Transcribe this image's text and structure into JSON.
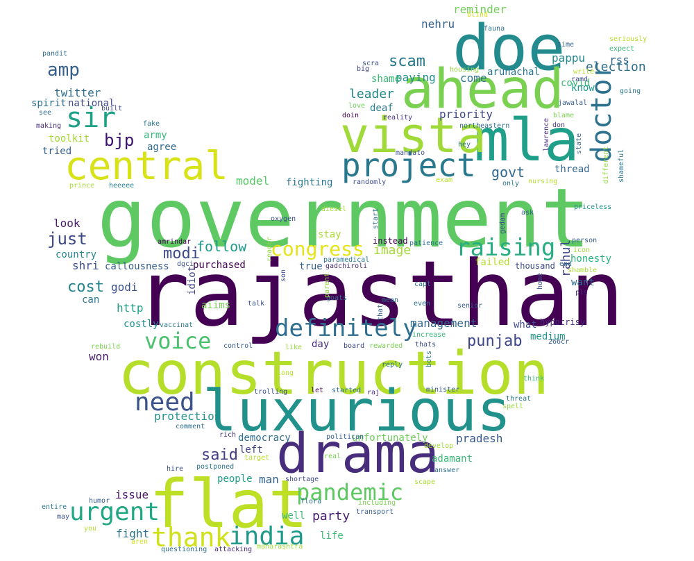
{
  "words": [
    {
      "text": "government",
      "color": "#5ec962"
    },
    {
      "text": "rajasthan",
      "color": "#440154"
    },
    {
      "text": "construction",
      "color": "#b5de2b"
    },
    {
      "text": "luxurious",
      "color": "#21918c"
    },
    {
      "text": "drama",
      "color": "#472d7b"
    },
    {
      "text": "flat",
      "color": "#bddf26"
    },
    {
      "text": "doe",
      "color": "#238a8d"
    },
    {
      "text": "ahead",
      "color": "#7ad151"
    },
    {
      "text": "mla",
      "color": "#1f9e89"
    },
    {
      "text": "vista",
      "color": "#a0da39"
    },
    {
      "text": "central",
      "color": "#d8e219"
    },
    {
      "text": "project",
      "color": "#2a788e"
    },
    {
      "text": "sir",
      "color": "#1fa187"
    },
    {
      "text": "doctor",
      "color": "#2c728e"
    },
    {
      "text": "definitely",
      "color": "#2e6e8e"
    },
    {
      "text": "congress",
      "color": "#e5e419"
    },
    {
      "text": "raising",
      "color": "#27ad81"
    },
    {
      "text": "voice",
      "color": "#4ac16d"
    },
    {
      "text": "need",
      "color": "#3b528b"
    },
    {
      "text": "urgent",
      "color": "#22a884"
    },
    {
      "text": "thank",
      "color": "#d0e11c"
    },
    {
      "text": "india",
      "color": "#1f9a8a"
    },
    {
      "text": "pandemic",
      "color": "#5ec962"
    },
    {
      "text": "said",
      "color": "#433e85"
    },
    {
      "text": "amp",
      "color": "#355f8d"
    },
    {
      "text": "bjp",
      "color": "#3b0f70"
    },
    {
      "text": "modi",
      "color": "#3e4a89"
    },
    {
      "text": "just",
      "color": "#3e4989"
    },
    {
      "text": "cost",
      "color": "#25848e"
    },
    {
      "text": "shri",
      "color": "#3d4e8a"
    },
    {
      "text": "follow",
      "color": "#1e9b8a"
    },
    {
      "text": "image",
      "color": "#a5db36"
    },
    {
      "text": "punjab",
      "color": "#3f4788"
    },
    {
      "text": "management",
      "color": "#31688e"
    },
    {
      "text": "scam",
      "color": "#29798e"
    },
    {
      "text": "leader",
      "color": "#238a8d"
    },
    {
      "text": "govt",
      "color": "#31688e"
    },
    {
      "text": "priority",
      "color": "#3f4788"
    },
    {
      "text": "paying",
      "color": "#228c8d"
    },
    {
      "text": "come",
      "color": "#2c728e"
    },
    {
      "text": "reminder",
      "color": "#70cf57"
    },
    {
      "text": "nehru",
      "color": "#355f8d"
    },
    {
      "text": "arunachal",
      "color": "#2a768e"
    },
    {
      "text": "election",
      "color": "#2e6f8e"
    },
    {
      "text": "rss",
      "color": "#31688e"
    },
    {
      "text": "pappu",
      "color": "#23898e"
    },
    {
      "text": "covid",
      "color": "#3aba76"
    },
    {
      "text": "know",
      "color": "#1f978b"
    },
    {
      "text": "thread",
      "color": "#32658e"
    },
    {
      "text": "rahul",
      "color": "#3f4889"
    },
    {
      "text": "honesty",
      "color": "#2db27d"
    },
    {
      "text": "want",
      "color": "#2e6e8e"
    },
    {
      "text": "party",
      "color": "#481a6c"
    },
    {
      "text": "people",
      "color": "#1f9e89"
    },
    {
      "text": "man",
      "color": "#33638d"
    },
    {
      "text": "well",
      "color": "#3bbb75"
    },
    {
      "text": "issue",
      "color": "#481769"
    },
    {
      "text": "fight",
      "color": "#2c738e"
    },
    {
      "text": "life",
      "color": "#3dbc74"
    },
    {
      "text": "pradesh",
      "color": "#38598c"
    },
    {
      "text": "adamant",
      "color": "#3aba76"
    },
    {
      "text": "democracy",
      "color": "#2f6c8e"
    },
    {
      "text": "unfortunately",
      "color": "#6ccd5a"
    },
    {
      "text": "left",
      "color": "#404688"
    },
    {
      "text": "won",
      "color": "#481f70"
    },
    {
      "text": "medium",
      "color": "#1f988b"
    },
    {
      "text": "day",
      "color": "#472c7a"
    },
    {
      "text": "true",
      "color": "#33638d"
    },
    {
      "text": "purchased",
      "color": "#440154"
    },
    {
      "text": "callousness",
      "color": "#355e8d"
    },
    {
      "text": "godi",
      "color": "#3b528b"
    },
    {
      "text": "can",
      "color": "#2a768e"
    },
    {
      "text": "http",
      "color": "#1fa088"
    },
    {
      "text": "costly",
      "color": "#21918c"
    },
    {
      "text": "aiims",
      "color": "#75d054"
    },
    {
      "text": "country",
      "color": "#25858e"
    },
    {
      "text": "look",
      "color": "#481a6c"
    },
    {
      "text": "fighting",
      "color": "#2a788e"
    },
    {
      "text": "model",
      "color": "#58c765"
    },
    {
      "text": "stay",
      "color": "#a8db34"
    },
    {
      "text": "failed",
      "color": "#b5de2b"
    },
    {
      "text": "twitter",
      "color": "#2f6c8e"
    },
    {
      "text": "national",
      "color": "#3e4a89"
    },
    {
      "text": "spirit",
      "color": "#2e6f8e"
    },
    {
      "text": "toolkit",
      "color": "#a2da37"
    },
    {
      "text": "tried",
      "color": "#355e8d"
    },
    {
      "text": "army",
      "color": "#35b779"
    },
    {
      "text": "agree",
      "color": "#31688e"
    },
    {
      "text": "protection",
      "color": "#21918c"
    },
    {
      "text": "shame",
      "color": "#3aba76"
    },
    {
      "text": "deaf",
      "color": "#287c8e"
    },
    {
      "text": "idiot",
      "color": "#404387"
    },
    {
      "text": "thousand",
      "color": "#3e4c8a"
    },
    {
      "text": "what",
      "color": "#3f4889"
    },
    {
      "text": "instead",
      "color": "#440154"
    },
    {
      "text": "hypocrisy",
      "color": "#472d7b"
    },
    {
      "text": "pandit",
      "color": "#2e6e8e"
    },
    {
      "text": "see",
      "color": "#31688e"
    },
    {
      "text": "making",
      "color": "#472c7a"
    },
    {
      "text": "built",
      "color": "#3e4989"
    },
    {
      "text": "fake",
      "color": "#2a768e"
    },
    {
      "text": "heeeee",
      "color": "#26828e"
    },
    {
      "text": "prince",
      "color": "#aadc32"
    },
    {
      "text": "blind",
      "color": "#d5e21a"
    },
    {
      "text": "fauna",
      "color": "#2c728e"
    },
    {
      "text": "time",
      "color": "#355f8d"
    },
    {
      "text": "seriously",
      "color": "#b8de29"
    },
    {
      "text": "expect",
      "color": "#3aba76"
    },
    {
      "text": "scra",
      "color": "#3b528b"
    },
    {
      "text": "big",
      "color": "#3f4788"
    },
    {
      "text": "housing",
      "color": "#95d840"
    },
    {
      "text": "write",
      "color": "#b5de2b"
    },
    {
      "text": "ramd",
      "color": "#3e4a89"
    },
    {
      "text": "jawalal",
      "color": "#355e8d"
    },
    {
      "text": "going",
      "color": "#2a788e"
    },
    {
      "text": "love",
      "color": "#6ccd5a"
    },
    {
      "text": "doin",
      "color": "#440154"
    },
    {
      "text": "reality",
      "color": "#46327e"
    },
    {
      "text": "northeastern",
      "color": "#2e6e8e"
    },
    {
      "text": "blame",
      "color": "#7ad151"
    },
    {
      "text": "don",
      "color": "#46327e"
    },
    {
      "text": "hey",
      "color": "#2c728e"
    },
    {
      "text": "lawrence",
      "color": "#472c7a"
    },
    {
      "text": "state",
      "color": "#355f8d"
    },
    {
      "text": "mandato",
      "color": "#3b528b"
    },
    {
      "text": "randomly",
      "color": "#3e4c8a"
    },
    {
      "text": "exam",
      "color": "#b5de2b"
    },
    {
      "text": "only",
      "color": "#2a788e"
    },
    {
      "text": "nursing",
      "color": "#b5de2b"
    },
    {
      "text": "different",
      "color": "#95d840"
    },
    {
      "text": "shameful",
      "color": "#2a788e"
    },
    {
      "text": "priceless",
      "color": "#21918c"
    },
    {
      "text": "diesel",
      "color": "#a8db34"
    },
    {
      "text": "oxygen",
      "color": "#3b528b"
    },
    {
      "text": "start",
      "color": "#2e6e8e"
    },
    {
      "text": "gedam",
      "color": "#3e4a89"
    },
    {
      "text": "ask",
      "color": "#355f8d"
    },
    {
      "text": "amrindar",
      "color": "#440154"
    },
    {
      "text": "patience",
      "color": "#2c728e"
    },
    {
      "text": "person",
      "color": "#355e8d"
    },
    {
      "text": "icon",
      "color": "#a0da39"
    },
    {
      "text": "paramedical",
      "color": "#2a788e"
    },
    {
      "text": "gadchiroli",
      "color": "#472d7b"
    },
    {
      "text": "reader",
      "color": "#95d840"
    },
    {
      "text": "end",
      "color": "#2e6e8e"
    },
    {
      "text": "shamble",
      "color": "#aadc32"
    },
    {
      "text": "dgci",
      "color": "#3b528b"
    },
    {
      "text": "goats",
      "color": "#2e6e8e"
    },
    {
      "text": "son",
      "color": "#3e4a89"
    },
    {
      "text": "capt",
      "color": "#2c728e"
    },
    {
      "text": "senior",
      "color": "#355f8d"
    },
    {
      "text": "home",
      "color": "#3b528b"
    },
    {
      "text": "pls",
      "color": "#472d7b"
    },
    {
      "text": "mean",
      "color": "#2e6e8e"
    },
    {
      "text": "that",
      "color": "#355e8d"
    },
    {
      "text": "parent",
      "color": "#95d840"
    },
    {
      "text": "talk",
      "color": "#3b528b"
    },
    {
      "text": "even",
      "color": "#2c728e"
    },
    {
      "text": "vaccinat",
      "color": "#2a788e"
    },
    {
      "text": "increase",
      "color": "#35b779"
    },
    {
      "text": "thats",
      "color": "#3b528b"
    },
    {
      "text": "266cr",
      "color": "#355f8d"
    },
    {
      "text": "rebuild",
      "color": "#7ad151"
    },
    {
      "text": "control",
      "color": "#355e8d"
    },
    {
      "text": "like",
      "color": "#95d840"
    },
    {
      "text": "board",
      "color": "#3e4a89"
    },
    {
      "text": "rewarded",
      "color": "#7ad151"
    },
    {
      "text": "reply",
      "color": "#2c728e"
    },
    {
      "text": "think",
      "color": "#35b779"
    },
    {
      "text": "bots",
      "color": "#2a788e"
    },
    {
      "text": "long",
      "color": "#b5de2b"
    },
    {
      "text": "trolling",
      "color": "#3b528b"
    },
    {
      "text": "let",
      "color": "#440154"
    },
    {
      "text": "started",
      "color": "#2e6e8e"
    },
    {
      "text": "raj",
      "color": "#472d7b"
    },
    {
      "text": "minister",
      "color": "#355f8d"
    },
    {
      "text": "threat",
      "color": "#2a788e"
    },
    {
      "text": "spell",
      "color": "#95d840"
    },
    {
      "text": "comment",
      "color": "#2c728e"
    },
    {
      "text": "rich",
      "color": "#46327e"
    },
    {
      "text": "politican",
      "color": "#355e8d"
    },
    {
      "text": "target",
      "color": "#b5de2b"
    },
    {
      "text": "real",
      "color": "#7ad151"
    },
    {
      "text": "develop",
      "color": "#a0da39"
    },
    {
      "text": "hire",
      "color": "#3b528b"
    },
    {
      "text": "postponed",
      "color": "#2a788e"
    },
    {
      "text": "shortage",
      "color": "#3e4a89"
    },
    {
      "text": "answer",
      "color": "#2e6e8e"
    },
    {
      "text": "scape",
      "color": "#a8db34"
    },
    {
      "text": "humor",
      "color": "#355f8d"
    },
    {
      "text": "flora",
      "color": "#2c728e"
    },
    {
      "text": "including",
      "color": "#7ad151"
    },
    {
      "text": "transport",
      "color": "#355e8d"
    },
    {
      "text": "entire",
      "color": "#2a788e"
    },
    {
      "text": "may",
      "color": "#3b528b"
    },
    {
      "text": "you",
      "color": "#b5de2b"
    },
    {
      "text": "aren",
      "color": "#d0e11c"
    },
    {
      "text": "questioning",
      "color": "#2e6e8e"
    },
    {
      "text": "attacking",
      "color": "#472d7b"
    },
    {
      "text": "maharashtra",
      "color": "#a0da39"
    }
  ]
}
